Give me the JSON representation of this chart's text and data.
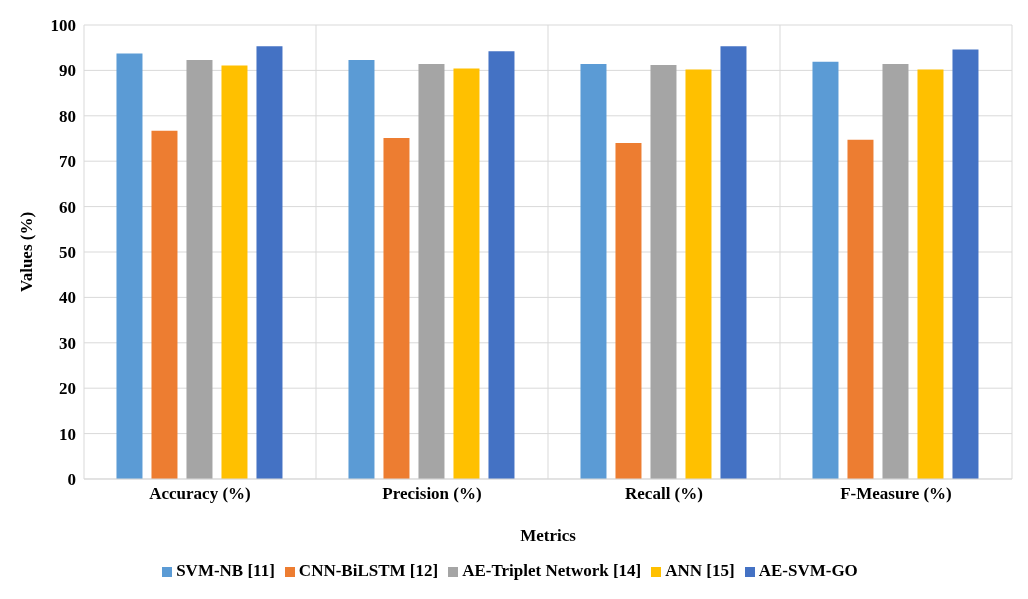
{
  "chart_data": {
    "type": "bar",
    "xlabel": "Metrics",
    "ylabel": "Values (%)",
    "categories": [
      "Accuracy (%)",
      "Precision (%)",
      "Recall (%)",
      "F-Measure (%)"
    ],
    "series": [
      {
        "name": "SVM-NB [11]",
        "color": "#5b9bd5",
        "values": [
          93.7,
          92.3,
          91.4,
          91.9
        ]
      },
      {
        "name": "CNN-BiLSTM [12]",
        "color": "#ed7d31",
        "values": [
          76.7,
          75.1,
          74.0,
          74.7
        ]
      },
      {
        "name": "AE-Triplet Network [14]",
        "color": "#a5a5a5",
        "values": [
          92.3,
          91.4,
          91.2,
          91.4
        ]
      },
      {
        "name": "ANN [15]",
        "color": "#ffc000",
        "values": [
          91.1,
          90.4,
          90.2,
          90.2
        ]
      },
      {
        "name": "AE-SVM-GO",
        "color": "#4472c4",
        "values": [
          95.3,
          94.2,
          95.3,
          94.6
        ]
      }
    ],
    "ylim": [
      0,
      100
    ],
    "yticks": [
      0,
      10,
      20,
      30,
      40,
      50,
      60,
      70,
      80,
      90,
      100
    ],
    "grid": true,
    "legend": "bottom"
  }
}
